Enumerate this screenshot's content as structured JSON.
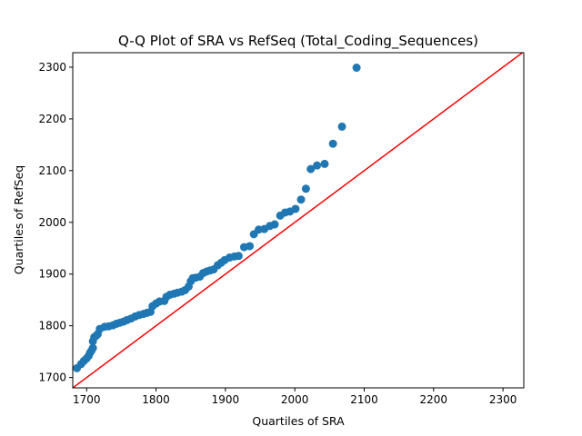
{
  "chart_data": {
    "type": "scatter",
    "title": "Q-Q Plot of SRA vs RefSeq (Total_Coding_Sequences)",
    "xlabel": "Quartiles of SRA",
    "ylabel": "Quartiles of RefSeq",
    "xlim": [
      1680,
      2330
    ],
    "ylim": [
      1680,
      2328
    ],
    "xticks": [
      1700,
      1800,
      1900,
      2000,
      2100,
      2200,
      2300
    ],
    "yticks": [
      1700,
      1800,
      1900,
      2000,
      2100,
      2200,
      2300
    ],
    "grid": false,
    "legend": "none",
    "reference_line": {
      "from": [
        1680,
        1680
      ],
      "to": [
        2330,
        2330
      ],
      "color": "#ff0000"
    },
    "marker_color": "#1f77b4",
    "points": [
      [
        1686,
        1718
      ],
      [
        1692,
        1726
      ],
      [
        1696,
        1732
      ],
      [
        1700,
        1737
      ],
      [
        1703,
        1742
      ],
      [
        1705,
        1748
      ],
      [
        1707,
        1752
      ],
      [
        1709,
        1757
      ],
      [
        1709,
        1770
      ],
      [
        1711,
        1778
      ],
      [
        1714,
        1781
      ],
      [
        1716,
        1784
      ],
      [
        1719,
        1794
      ],
      [
        1726,
        1798
      ],
      [
        1732,
        1799
      ],
      [
        1738,
        1801
      ],
      [
        1743,
        1804
      ],
      [
        1748,
        1806
      ],
      [
        1753,
        1808
      ],
      [
        1758,
        1811
      ],
      [
        1764,
        1814
      ],
      [
        1770,
        1818
      ],
      [
        1776,
        1821
      ],
      [
        1782,
        1823
      ],
      [
        1787,
        1825
      ],
      [
        1792,
        1827
      ],
      [
        1795,
        1838
      ],
      [
        1800,
        1843
      ],
      [
        1805,
        1847
      ],
      [
        1812,
        1848
      ],
      [
        1815,
        1856
      ],
      [
        1820,
        1860
      ],
      [
        1826,
        1862
      ],
      [
        1831,
        1864
      ],
      [
        1837,
        1866
      ],
      [
        1842,
        1869
      ],
      [
        1847,
        1876
      ],
      [
        1850,
        1886
      ],
      [
        1853,
        1892
      ],
      [
        1857,
        1893
      ],
      [
        1863,
        1895
      ],
      [
        1868,
        1902
      ],
      [
        1873,
        1905
      ],
      [
        1878,
        1907
      ],
      [
        1883,
        1909
      ],
      [
        1889,
        1917
      ],
      [
        1894,
        1922
      ],
      [
        1899,
        1927
      ],
      [
        1906,
        1932
      ],
      [
        1913,
        1934
      ],
      [
        1919,
        1935
      ],
      [
        1927,
        1952
      ],
      [
        1935,
        1954
      ],
      [
        1941,
        1977
      ],
      [
        1948,
        1986
      ],
      [
        1956,
        1987
      ],
      [
        1964,
        1993
      ],
      [
        1971,
        1996
      ],
      [
        1979,
        2013
      ],
      [
        1986,
        2019
      ],
      [
        1993,
        2021
      ],
      [
        2001,
        2026
      ],
      [
        2009,
        2044
      ],
      [
        2016,
        2065
      ],
      [
        2023,
        2103
      ],
      [
        2032,
        2110
      ],
      [
        2043,
        2113
      ],
      [
        2055,
        2152
      ],
      [
        2068,
        2185
      ],
      [
        2089,
        2299
      ]
    ]
  }
}
